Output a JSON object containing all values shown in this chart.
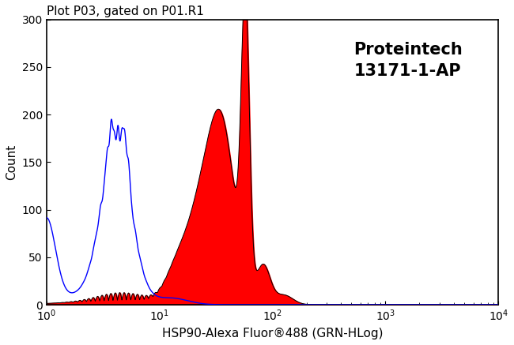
{
  "title": "Plot P03, gated on P01.R1",
  "xlabel": "HSP90-Alexa Fluor®488 (GRN-HLog)",
  "ylabel": "Count",
  "annotation_line1": "Proteintech",
  "annotation_line2": "13171-1-AP",
  "xlim_log": [
    1,
    10000
  ],
  "ylim": [
    0,
    300
  ],
  "yticks": [
    0,
    50,
    100,
    150,
    200,
    250,
    300
  ],
  "blue_color": "#0000FF",
  "red_color": "#FF0000",
  "black_color": "#000000",
  "bg_color": "#FFFFFF",
  "title_fontsize": 11,
  "label_fontsize": 11,
  "annot_fontsize": 15
}
